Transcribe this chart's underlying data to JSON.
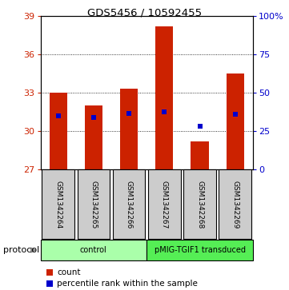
{
  "title": "GDS5456 / 10592455",
  "samples": [
    "GSM1342264",
    "GSM1342265",
    "GSM1342266",
    "GSM1342267",
    "GSM1342268",
    "GSM1342269"
  ],
  "bar_bottoms": [
    27,
    27,
    27,
    27,
    27,
    27
  ],
  "bar_tops": [
    33.0,
    32.0,
    33.3,
    38.2,
    29.2,
    34.5
  ],
  "percentile_values": [
    31.2,
    31.1,
    31.4,
    31.5,
    30.4,
    31.3
  ],
  "ylim": [
    27,
    39
  ],
  "yticks_left": [
    27,
    30,
    33,
    36,
    39
  ],
  "yticks_right": [
    0,
    25,
    50,
    75,
    100
  ],
  "left_color": "#cc2200",
  "right_color": "#0000cc",
  "bar_color": "#cc2200",
  "percentile_color": "#0000cc",
  "bg_color": "#ffffff",
  "protocol_groups": [
    {
      "label": "control",
      "color": "#aaffaa",
      "start": 0,
      "end": 2
    },
    {
      "label": "pMIG-TGIF1 transduced",
      "color": "#55ee55",
      "start": 3,
      "end": 5
    }
  ],
  "legend_count_label": "count",
  "legend_percentile_label": "percentile rank within the sample",
  "protocol_label": "protocol",
  "sample_box_color": "#cccccc",
  "bar_width": 0.5
}
